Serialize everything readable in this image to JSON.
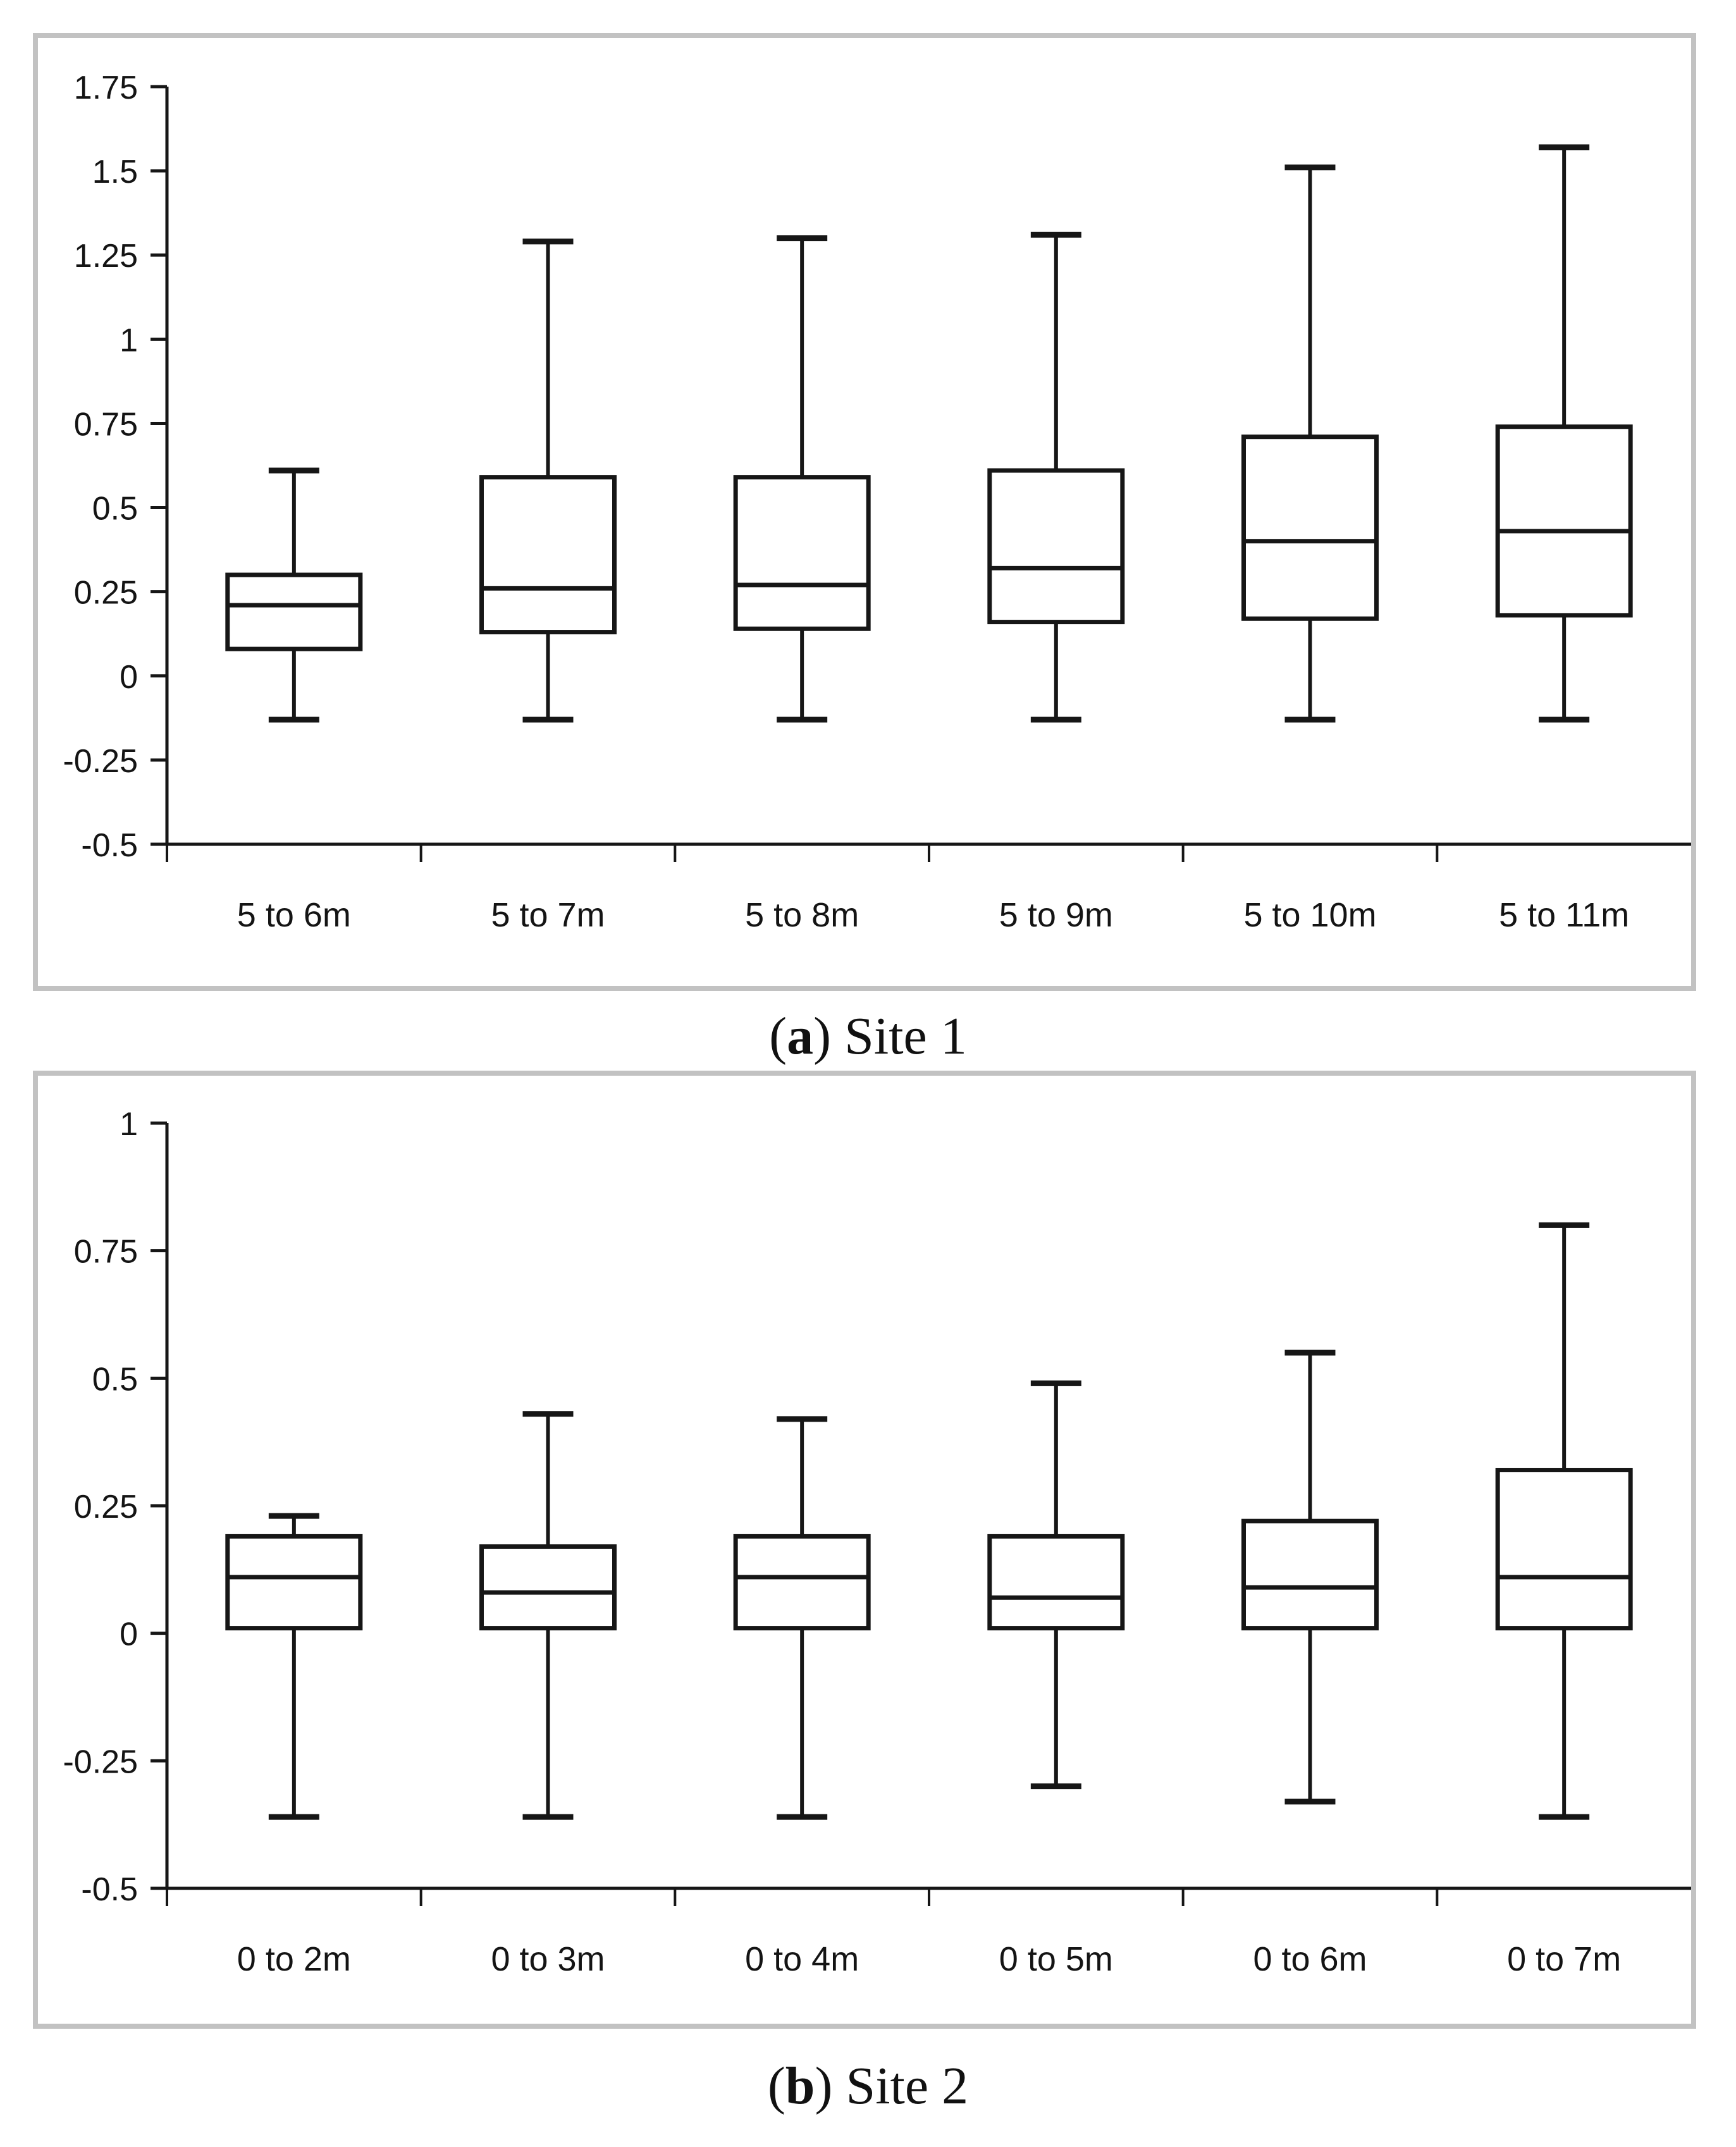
{
  "figure": {
    "captions": [
      {
        "open": "(",
        "letter": "a",
        "close": ")",
        "text": " Site 1"
      },
      {
        "open": "(",
        "letter": "b",
        "close": ")",
        "text": " Site 2"
      }
    ]
  },
  "colors": {
    "panel_border": "#c2c2c2",
    "axis_line": "#1c1c1c",
    "box_line": "#161616",
    "text": "#141414"
  },
  "chart_data": [
    {
      "type": "box",
      "title": "(a) Site 1",
      "xlabel": "",
      "ylabel": "",
      "grid": false,
      "legend": "none",
      "ylim": [
        -0.5,
        1.75
      ],
      "y_ticks": [
        "1.75",
        "1.5",
        "1.25",
        "1",
        "0.75",
        "0.5",
        "0.25",
        "0",
        "-0.25",
        "-0.5"
      ],
      "categories": [
        "5 to 6m",
        "5 to 7m",
        "5 to 8m",
        "5 to 9m",
        "5 to 10m",
        "5 to 11m"
      ],
      "boxes": [
        {
          "category": "5 to 6m",
          "whisker_low": -0.13,
          "q1": 0.08,
          "median": 0.21,
          "q3": 0.3,
          "whisker_high": 0.61
        },
        {
          "category": "5 to 7m",
          "whisker_low": -0.13,
          "q1": 0.13,
          "median": 0.26,
          "q3": 0.59,
          "whisker_high": 1.29
        },
        {
          "category": "5 to 8m",
          "whisker_low": -0.13,
          "q1": 0.14,
          "median": 0.27,
          "q3": 0.59,
          "whisker_high": 1.3
        },
        {
          "category": "5 to 9m",
          "whisker_low": -0.13,
          "q1": 0.16,
          "median": 0.32,
          "q3": 0.61,
          "whisker_high": 1.31
        },
        {
          "category": "5 to 10m",
          "whisker_low": -0.13,
          "q1": 0.17,
          "median": 0.4,
          "q3": 0.71,
          "whisker_high": 1.51
        },
        {
          "category": "5 to 11m",
          "whisker_low": -0.13,
          "q1": 0.18,
          "median": 0.43,
          "q3": 0.74,
          "whisker_high": 1.57
        }
      ]
    },
    {
      "type": "box",
      "title": "(b) Site 2",
      "xlabel": "",
      "ylabel": "",
      "grid": false,
      "legend": "none",
      "ylim": [
        -0.5,
        1.0
      ],
      "y_ticks": [
        "1",
        "0.75",
        "0.5",
        "0.25",
        "0",
        "-0.25",
        "-0.5"
      ],
      "categories": [
        "0 to 2m",
        "0 to 3m",
        "0 to 4m",
        "0 to 5m",
        "0 to 6m",
        "0 to 7m"
      ],
      "boxes": [
        {
          "category": "0 to 2m",
          "whisker_low": -0.36,
          "q1": 0.01,
          "median": 0.11,
          "q3": 0.19,
          "whisker_high": 0.23
        },
        {
          "category": "0 to 3m",
          "whisker_low": -0.36,
          "q1": 0.01,
          "median": 0.08,
          "q3": 0.17,
          "whisker_high": 0.43
        },
        {
          "category": "0 to 4m",
          "whisker_low": -0.36,
          "q1": 0.01,
          "median": 0.11,
          "q3": 0.19,
          "whisker_high": 0.42
        },
        {
          "category": "0 to 5m",
          "whisker_low": -0.3,
          "q1": 0.01,
          "median": 0.07,
          "q3": 0.19,
          "whisker_high": 0.49
        },
        {
          "category": "0 to 6m",
          "whisker_low": -0.33,
          "q1": 0.01,
          "median": 0.09,
          "q3": 0.22,
          "whisker_high": 0.55
        },
        {
          "category": "0 to 7m",
          "whisker_low": -0.36,
          "q1": 0.01,
          "median": 0.11,
          "q3": 0.32,
          "whisker_high": 0.8
        }
      ]
    }
  ]
}
